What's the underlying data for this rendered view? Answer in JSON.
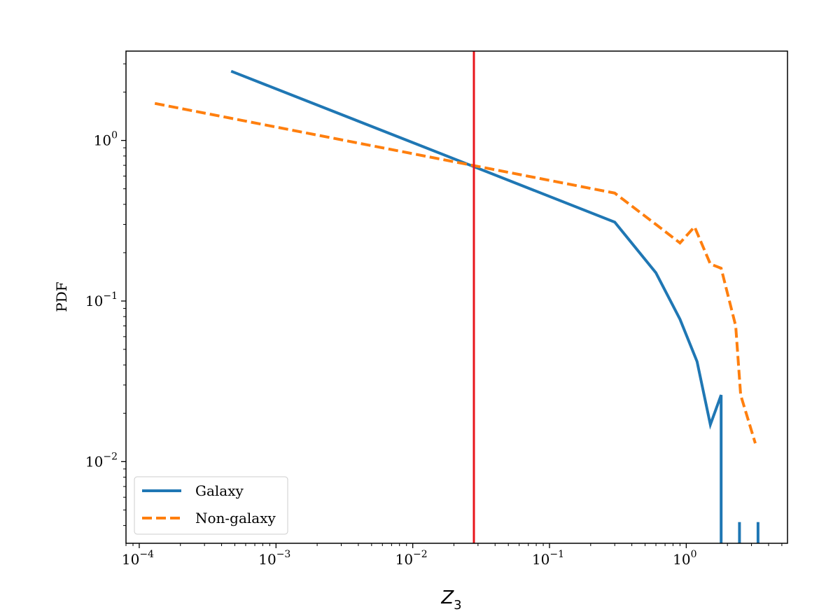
{
  "chart_data": {
    "type": "line",
    "xlabel": "Z",
    "xlabel_subscript": "3",
    "ylabel": "PDF",
    "xscale": "log",
    "yscale": "log",
    "xlim": [
      8e-05,
      5.5
    ],
    "ylim": [
      0.0031,
      3.6
    ],
    "grid": false,
    "legend_location": "lower left",
    "x_major_ticks": [
      0.0001,
      0.001,
      0.01,
      0.1,
      1
    ],
    "x_tick_labels": [
      {
        "base": "10",
        "exp": "−4"
      },
      {
        "base": "10",
        "exp": "−3"
      },
      {
        "base": "10",
        "exp": "−2"
      },
      {
        "base": "10",
        "exp": "−1"
      },
      {
        "base": "10",
        "exp": "0"
      }
    ],
    "y_major_ticks": [
      0.01,
      0.1,
      1
    ],
    "y_tick_labels": [
      {
        "base": "10",
        "exp": "−2"
      },
      {
        "base": "10",
        "exp": "−1"
      },
      {
        "base": "10",
        "exp": "0"
      }
    ],
    "vline": {
      "x": 0.028,
      "color": "#e8151b"
    },
    "series": [
      {
        "name": "Galaxy",
        "color": "#1f77b4",
        "style": "solid",
        "segments": [
          [
            [
              0.00047,
              2.7
            ],
            [
              0.01,
              0.97
            ],
            [
              0.3,
              0.31
            ],
            [
              0.6,
              0.15
            ],
            [
              0.9,
              0.077
            ],
            [
              1.2,
              0.042
            ],
            [
              1.5,
              0.017
            ],
            [
              1.8,
              0.026
            ],
            [
              1.8,
              0.0031
            ]
          ],
          [
            [
              2.45,
              0.0031
            ],
            [
              2.45,
              0.0042
            ]
          ],
          [
            [
              3.35,
              0.0031
            ],
            [
              3.35,
              0.0042
            ]
          ]
        ]
      },
      {
        "name": "Non-galaxy",
        "color": "#ff7f0e",
        "style": "dashed",
        "segments": [
          [
            [
              0.00013,
              1.7
            ],
            [
              0.3,
              0.47
            ],
            [
              0.6,
              0.3
            ],
            [
              0.9,
              0.23
            ],
            [
              1.15,
              0.29
            ],
            [
              1.5,
              0.17
            ],
            [
              1.8,
              0.16
            ],
            [
              2.3,
              0.07
            ],
            [
              2.5,
              0.026
            ],
            [
              3.2,
              0.013
            ]
          ]
        ]
      }
    ]
  }
}
